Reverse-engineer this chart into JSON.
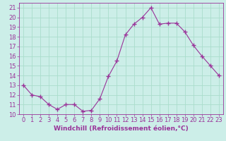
{
  "x": [
    0,
    1,
    2,
    3,
    4,
    5,
    6,
    7,
    8,
    9,
    10,
    11,
    12,
    13,
    14,
    15,
    16,
    17,
    18,
    19,
    20,
    21,
    22,
    23
  ],
  "y": [
    13,
    12,
    11.8,
    11,
    10.5,
    11,
    11,
    10.3,
    10.4,
    11.6,
    13.9,
    15.5,
    18.2,
    19.3,
    20.0,
    21.0,
    19.3,
    19.4,
    19.4,
    18.5,
    17.1,
    16.0,
    15.0,
    14.0
  ],
  "line_color": "#993399",
  "marker": "+",
  "marker_size": 4,
  "bg_color": "#cceee8",
  "grid_color": "#aaddcc",
  "xlabel": "Windchill (Refroidissement éolien,°C)",
  "xlim": [
    -0.5,
    23.5
  ],
  "ylim": [
    10,
    21.5
  ],
  "yticks": [
    10,
    11,
    12,
    13,
    14,
    15,
    16,
    17,
    18,
    19,
    20,
    21
  ],
  "xticks": [
    0,
    1,
    2,
    3,
    4,
    5,
    6,
    7,
    8,
    9,
    10,
    11,
    12,
    13,
    14,
    15,
    16,
    17,
    18,
    19,
    20,
    21,
    22,
    23
  ],
  "label_fontsize": 6.5,
  "tick_fontsize": 6.0
}
